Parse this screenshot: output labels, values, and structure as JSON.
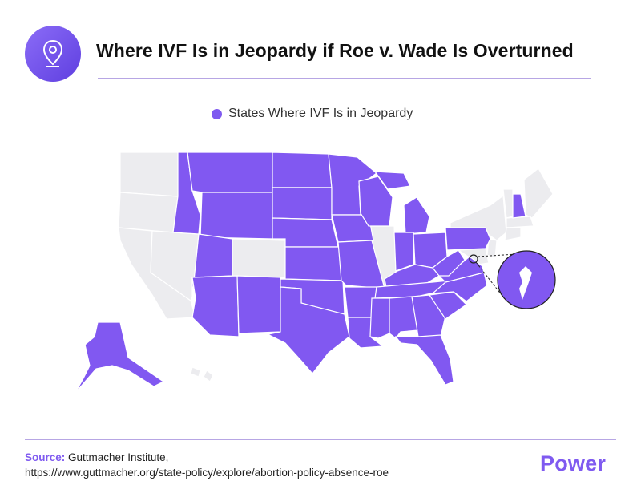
{
  "header": {
    "title": "Where IVF Is in Jeopardy if Roe v. Wade Is Overturned",
    "icon": "location-pin-icon"
  },
  "legend": {
    "label": "States Where IVF Is in Jeopardy",
    "color": "#7f5af0"
  },
  "map": {
    "highlight_color": "#8158f1",
    "base_color": "#ececef",
    "states_in_jeopardy": [
      "WA",
      "OR",
      "ID",
      "MT",
      "WY",
      "UT",
      "AZ",
      "NM",
      "ND",
      "SD",
      "NE",
      "KS",
      "OK",
      "TX",
      "MN",
      "IA",
      "MO",
      "AR",
      "LA",
      "WI",
      "MI",
      "IN",
      "OH",
      "KY",
      "TN",
      "MS",
      "AL",
      "GA",
      "FL",
      "SC",
      "NC",
      "VA",
      "WV",
      "PA",
      "NH",
      "AK",
      "DC"
    ],
    "states_not_in_jeopardy": [
      "CA",
      "NV",
      "CO",
      "IL",
      "NY",
      "VT",
      "ME",
      "MA",
      "CT",
      "RI",
      "NJ",
      "DE",
      "MD",
      "HI"
    ],
    "inset": "DC"
  },
  "footer": {
    "source_label": "Source:",
    "source_name": "Guttmacher Institute,",
    "source_url": "https://www.guttmacher.org/state-policy/explore/abortion-policy-absence-roe",
    "brand": "Power"
  }
}
